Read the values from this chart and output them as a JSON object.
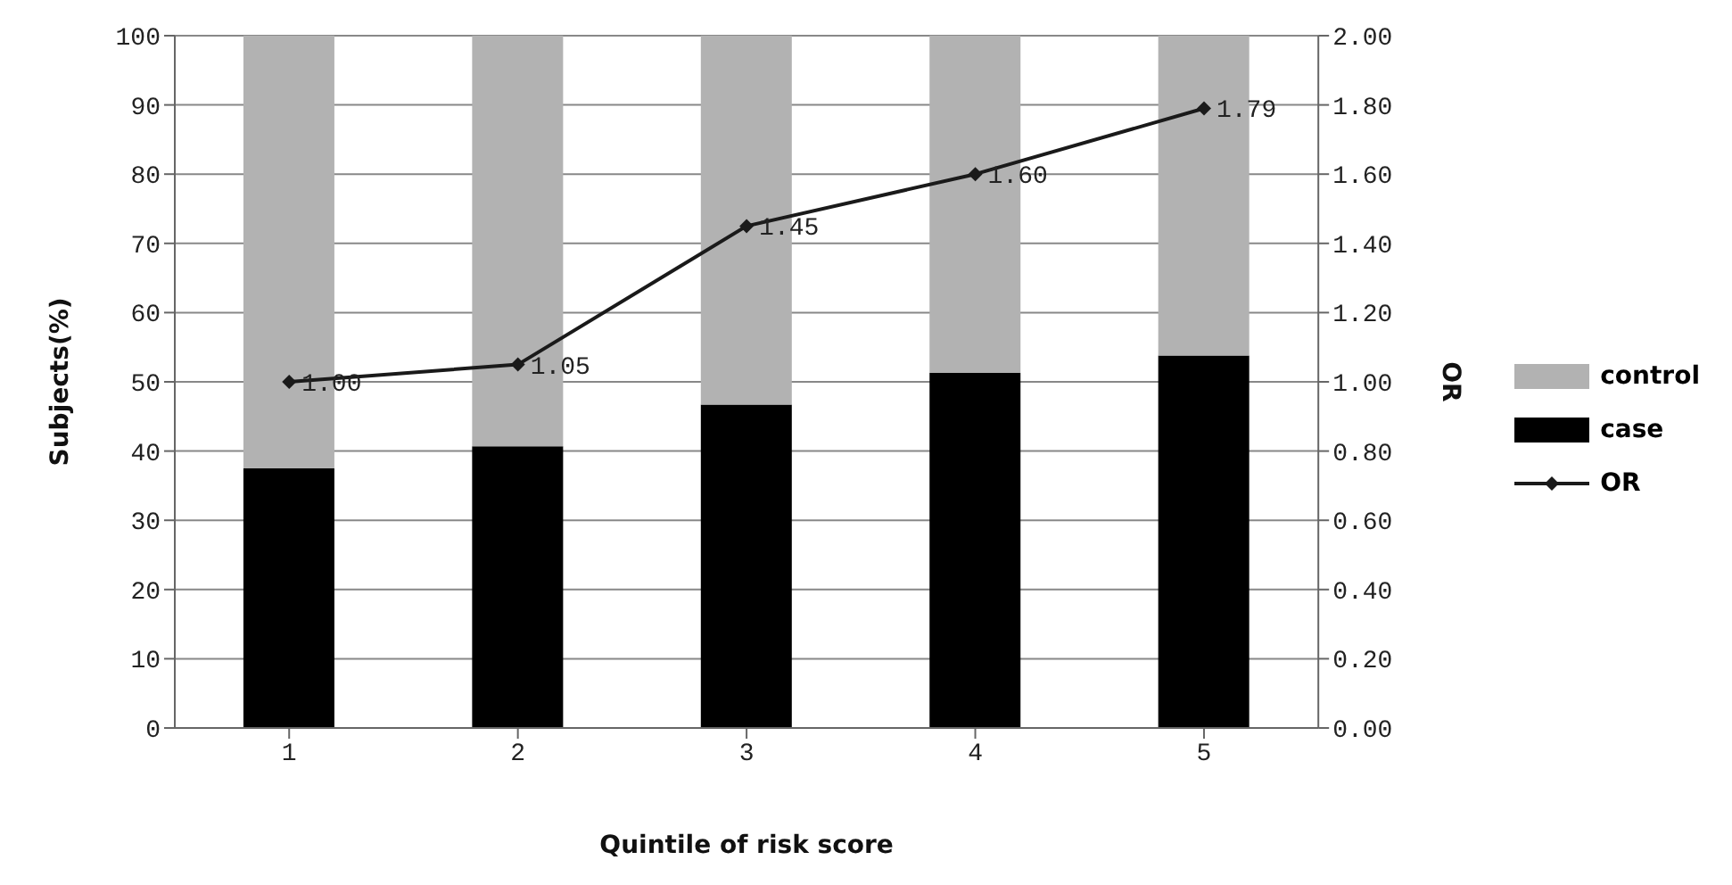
{
  "chart_data": {
    "type": "bar",
    "stacked": true,
    "xlabel": "Quintile of risk score",
    "ylabel": "Subjects(%)",
    "y2label": "OR",
    "categories": [
      "1",
      "2",
      "3",
      "4",
      "5"
    ],
    "series": [
      {
        "name": "case",
        "color": "#000000",
        "values": [
          37.5,
          40.7,
          46.7,
          51.3,
          53.8
        ]
      },
      {
        "name": "control",
        "color": "#b2b2b2",
        "values": [
          62.5,
          59.3,
          53.3,
          48.7,
          46.2
        ]
      },
      {
        "name": "OR",
        "type": "line",
        "axis": "y2",
        "color": "#1a1a1a",
        "values": [
          1.0,
          1.05,
          1.45,
          1.6,
          1.79
        ],
        "value_labels": [
          "1.00",
          "1.05",
          "1.45",
          "1.60",
          "1.79"
        ]
      }
    ],
    "ylim": [
      0,
      100
    ],
    "yticks": [
      0,
      10,
      20,
      30,
      40,
      50,
      60,
      70,
      80,
      90,
      100
    ],
    "y2lim": [
      0,
      2
    ],
    "y2ticks": [
      {
        "value": 0,
        "label": "0.00"
      },
      {
        "value": 0.2,
        "label": "0.20"
      },
      {
        "value": 0.4,
        "label": "0.40"
      },
      {
        "value": 0.6,
        "label": "0.60"
      },
      {
        "value": 0.8,
        "label": "0.80"
      },
      {
        "value": 1,
        "label": "1.00"
      },
      {
        "value": 1.2,
        "label": "1.20"
      },
      {
        "value": 1.4,
        "label": "1.40"
      },
      {
        "value": 1.6,
        "label": "1.60"
      },
      {
        "value": 1.8,
        "label": "1.80"
      },
      {
        "value": 2,
        "label": "2.00"
      }
    ],
    "grid": "y",
    "legend": "right",
    "marker": "diamond",
    "line_style": "solid"
  }
}
